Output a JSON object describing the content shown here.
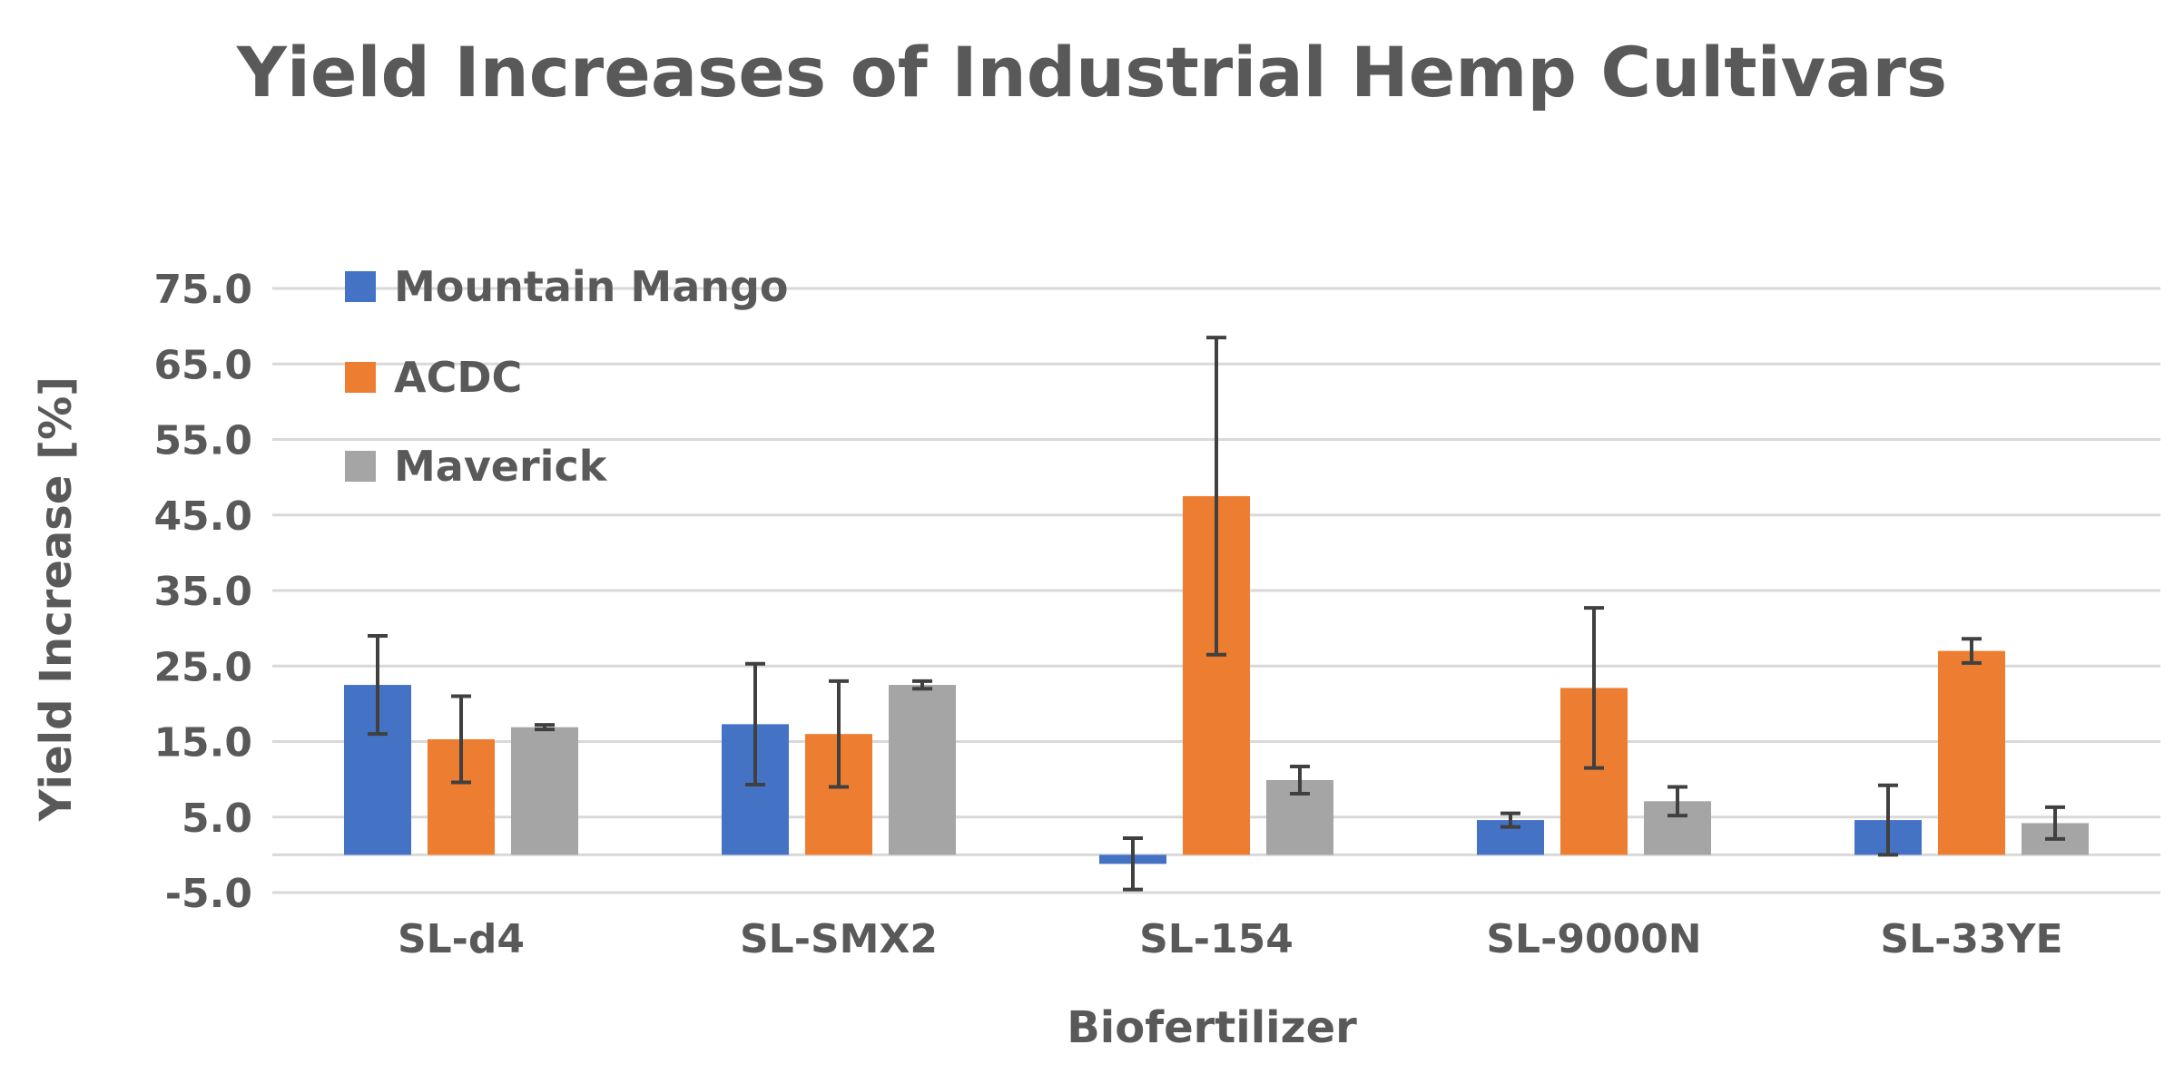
{
  "chart_data": {
    "type": "bar",
    "title": "Yield Increases of Industrial Hemp Cultivars",
    "xlabel": "Biofertilizer",
    "ylabel": "Yield Increase [%]",
    "ylim": [
      -5.0,
      75.0
    ],
    "yticks": [
      -5.0,
      5.0,
      15.0,
      25.0,
      35.0,
      45.0,
      55.0,
      65.0,
      75.0
    ],
    "ytick_labels": [
      "-5.0",
      "5.0",
      "15.0",
      "25.0",
      "35.0",
      "45.0",
      "55.0",
      "65.0",
      "75.0"
    ],
    "grid": true,
    "legend_position": "top-left",
    "categories": [
      "SL-d4",
      "SL-SMX2",
      "SL-154",
      "SL-9000N",
      "SL-33YE"
    ],
    "series": [
      {
        "name": "Mountain Mango",
        "color": "#4472C4",
        "values": [
          22.5,
          17.3,
          -1.2,
          4.6,
          4.6
        ],
        "errors": [
          6.5,
          8.0,
          3.4,
          0.9,
          4.6
        ]
      },
      {
        "name": "ACDC",
        "color": "#ED7D31",
        "values": [
          15.3,
          16.0,
          47.5,
          22.1,
          27.0
        ],
        "errors": [
          5.7,
          7.0,
          21.0,
          10.6,
          1.6
        ]
      },
      {
        "name": "Maverick",
        "color": "#A5A5A5",
        "values": [
          16.9,
          22.5,
          9.9,
          7.1,
          4.2
        ],
        "errors": [
          0.3,
          0.5,
          1.8,
          1.9,
          2.1
        ]
      }
    ]
  }
}
